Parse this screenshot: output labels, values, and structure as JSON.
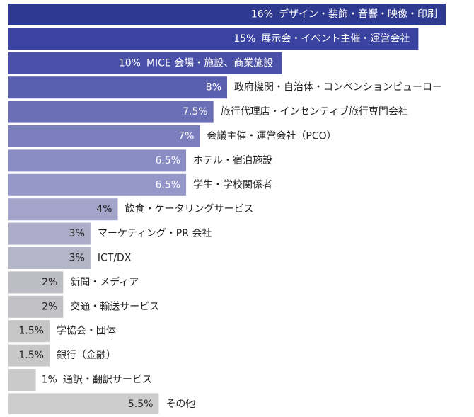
{
  "chart_data": {
    "type": "bar",
    "orientation": "horizontal",
    "categories": [
      "デザイン・装飾・音響・映像・印刷",
      "展示会・イベント主催・運営会社",
      "MICE 会場・施設、商業施設",
      "政府機関・自治体・コンベンションビューロー",
      "旅行代理店・インセンティブ旅行専門会社",
      "会議主催・運営会社（PCO）",
      "ホテル・宿泊施設",
      "学生・学校関係者",
      "飲食・ケータリングサービス",
      "マーケティング・PR 会社",
      "ICT/DX",
      "新聞・メディア",
      "交通・輸送サービス",
      "学協会・団体",
      "銀行（金融）",
      "通訳・翻訳サービス",
      "その他"
    ],
    "values": [
      16,
      15,
      10,
      8,
      7.5,
      7,
      6.5,
      6.5,
      4,
      3,
      3,
      2,
      2,
      1.5,
      1.5,
      1,
      5.5
    ],
    "value_labels": [
      "16%",
      "15%",
      "10%",
      "8%",
      "7.5%",
      "7%",
      "6.5%",
      "6.5%",
      "4%",
      "3%",
      "3%",
      "2%",
      "2%",
      "1.5%",
      "1.5%",
      "1%",
      "5.5%"
    ],
    "colors": [
      "#2e3a8f",
      "#3a44a0",
      "#4b51a8",
      "#5a5fae",
      "#6b6fb6",
      "#7b7ebd",
      "#8a8cc4",
      "#9597c8",
      "#a3a4c9",
      "#adadc9",
      "#b5b5c8",
      "#bdbdc6",
      "#c2c2c6",
      "#c6c6c6",
      "#c8c8c8",
      "#cacaca",
      "#cccccc"
    ]
  }
}
